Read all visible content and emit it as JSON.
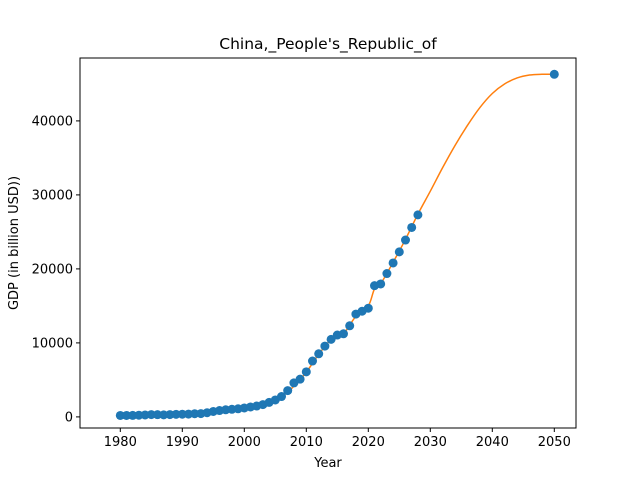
{
  "chart_data": {
    "type": "scatter",
    "title": "China,_People's_Republic_of",
    "xlabel": "Year",
    "ylabel": "GDP (in billion USD))",
    "xlim": [
      1973.5,
      2053.5
    ],
    "ylim": [
      -1500,
      48500
    ],
    "xticks": [
      1980,
      1990,
      2000,
      2010,
      2020,
      2030,
      2040,
      2050
    ],
    "yticks": [
      0,
      10000,
      20000,
      30000,
      40000
    ],
    "grid": false,
    "colors": {
      "points": "#1f77b4",
      "trend": "#ff7f0e"
    },
    "series": [
      {
        "kind": "points",
        "x": [
          1980,
          1981,
          1982,
          1983,
          1984,
          1985,
          1986,
          1987,
          1988,
          1989,
          1990,
          1991,
          1992,
          1993,
          1994,
          1995,
          1996,
          1997,
          1998,
          1999,
          2000,
          2001,
          2002,
          2003,
          2004,
          2005,
          2006,
          2007,
          2008,
          2009,
          2010,
          2011,
          2012,
          2013,
          2014,
          2015,
          2016,
          2017,
          2018,
          2019,
          2020,
          2021,
          2022,
          2023,
          2024,
          2025,
          2026,
          2027,
          2028,
          2050
        ],
        "y": [
          191,
          196,
          205,
          230,
          260,
          309,
          300,
          273,
          313,
          348,
          361,
          383,
          427,
          444,
          564,
          734,
          864,
          962,
          1029,
          1094,
          1211,
          1339,
          1471,
          1660,
          1955,
          2286,
          2752,
          3552,
          4594,
          5102,
          6087,
          7552,
          8532,
          9570,
          10476,
          11062,
          11233,
          12311,
          13895,
          14280,
          14688,
          17734,
          17963,
          19373,
          20800,
          22300,
          23900,
          25600,
          27300,
          46300
        ]
      },
      {
        "kind": "trend",
        "x": [
          2000,
          2002,
          2004,
          2006,
          2008,
          2010,
          2012,
          2014,
          2016,
          2018,
          2020,
          2021,
          2022,
          2024,
          2026,
          2028,
          2030,
          2032,
          2034,
          2036,
          2038,
          2040,
          2042,
          2044,
          2046,
          2048,
          2050
        ],
        "y": [
          1150,
          1450,
          1900,
          2700,
          4150,
          6050,
          8450,
          10450,
          11250,
          13600,
          15000,
          17300,
          18000,
          20900,
          24000,
          27400,
          30500,
          33700,
          36700,
          39400,
          41800,
          43700,
          45000,
          45800,
          46200,
          46300,
          46300
        ]
      }
    ]
  }
}
